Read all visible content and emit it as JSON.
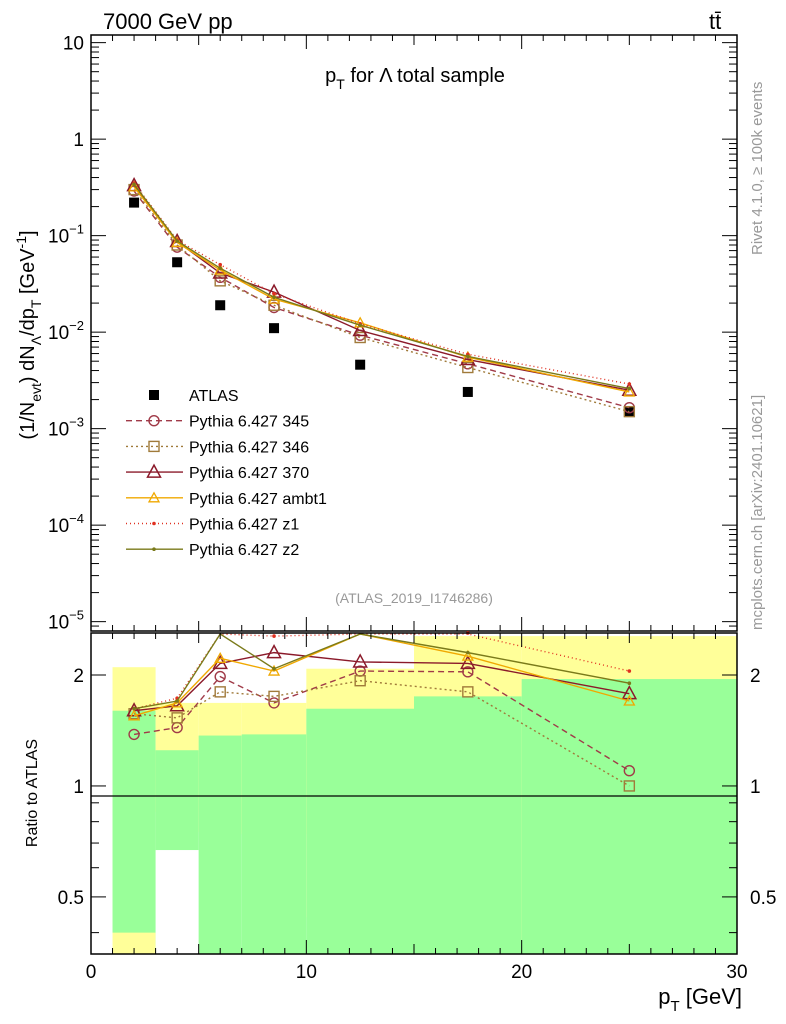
{
  "header": {
    "energy_label": "7000 GeV pp",
    "process_label": "tt̄"
  },
  "side_labels": {
    "rivet": "Rivet 4.1.0, ≥ 100k events",
    "mcplots": "mcplots.cern.ch [arXiv:2401.10621]"
  },
  "colors": {
    "band_green": "#99ff99",
    "band_yellow": "#ffff99",
    "axis": "#000000"
  },
  "chart_data": [
    {
      "type": "scatter",
      "panel": "main",
      "title": "p_T for Λ total sample",
      "ylabel": "(1/N_evt) dN_Λ/dp_T [GeV⁻¹]",
      "yscale": "log",
      "xlim": [
        0,
        30
      ],
      "ylim": [
        8e-06,
        12
      ],
      "ytick_labels": [
        {
          "value": 10,
          "base": "10",
          "exp": ""
        },
        {
          "value": 1,
          "base": "1",
          "exp": ""
        },
        {
          "value": 0.1,
          "base": "10",
          "exp": "−1"
        },
        {
          "value": 0.01,
          "base": "10",
          "exp": "−2"
        },
        {
          "value": 0.001,
          "base": "10",
          "exp": "−3"
        },
        {
          "value": 0.0001,
          "base": "10",
          "exp": "−4"
        },
        {
          "value": 1e-05,
          "base": "10",
          "exp": "−5"
        }
      ],
      "x": [
        2,
        4,
        6,
        8.5,
        12.5,
        17.5,
        25
      ],
      "reference_label": "(ATLAS_2019_I1746286)",
      "series": [
        {
          "name": "ATLAS",
          "color": "#000000",
          "dash": "",
          "marker": "square",
          "values": [
            0.22,
            0.053,
            0.019,
            0.011,
            0.0046,
            0.0024,
            0.0015
          ]
        },
        {
          "name": "Pythia 6.427 345",
          "color": "#a03a48",
          "dash": "6,4",
          "marker": "circle",
          "values": [
            0.29,
            0.076,
            0.037,
            0.018,
            0.0093,
            0.0047,
            0.00165
          ]
        },
        {
          "name": "Pythia 6.427 346",
          "color": "#a07a3a",
          "dash": "2,3",
          "marker": "square-open",
          "values": [
            0.3,
            0.08,
            0.034,
            0.019,
            0.0088,
            0.0043,
            0.0015
          ]
        },
        {
          "name": "Pythia 6.427 370",
          "color": "#8b1a2a",
          "dash": "",
          "marker": "triangle",
          "values": [
            0.33,
            0.087,
            0.041,
            0.026,
            0.0104,
            0.0052,
            0.0025
          ]
        },
        {
          "name": "Pythia 6.427 ambt1",
          "color": "#f0a800",
          "dash": "",
          "marker": "triangle-small",
          "values": [
            0.32,
            0.085,
            0.044,
            0.022,
            0.0125,
            0.0055,
            0.0024
          ]
        },
        {
          "name": "Pythia 6.427 z1",
          "color": "#e03020",
          "dash": "1,3",
          "marker": "dot",
          "values": [
            0.35,
            0.09,
            0.05,
            0.025,
            0.0122,
            0.0059,
            0.0029
          ]
        },
        {
          "name": "Pythia 6.427 z2",
          "color": "#7a7a1a",
          "dash": "",
          "marker": "dot",
          "values": [
            0.34,
            0.088,
            0.046,
            0.023,
            0.0118,
            0.0056,
            0.0026
          ]
        }
      ]
    },
    {
      "type": "scatter",
      "panel": "ratio",
      "ylabel": "Ratio to ATLAS",
      "xlabel": "p_T [GeV]",
      "yscale": "log",
      "xlim": [
        0,
        30
      ],
      "ylim": [
        0.35,
        2.6
      ],
      "yticks": [
        0.5,
        1,
        2
      ],
      "ytick_labels": [
        "0.5",
        "1",
        "2"
      ],
      "xticks": [
        0,
        10,
        20,
        30
      ],
      "xtick_labels": [
        "0",
        "10",
        "20",
        "30"
      ],
      "x": [
        2,
        4,
        6,
        8.5,
        12.5,
        17.5,
        25
      ],
      "bands": {
        "edges": [
          1,
          3,
          5,
          7,
          10,
          15,
          20,
          30
        ],
        "green_low": [
          0.4,
          0.35,
          0.35,
          0.35,
          0.35,
          0.35,
          0.35
        ],
        "green_high": [
          1.6,
          1.25,
          1.37,
          1.38,
          1.62,
          1.75,
          1.95
        ],
        "yellow_low": [
          0.35,
          0.85,
          0.75,
          0.74,
          0.44,
          0.35,
          0.35
        ],
        "yellow_high": [
          2.1,
          1.68,
          1.68,
          1.68,
          2.08,
          2.55,
          2.55
        ],
        "white_low": [
          0.35,
          0.35,
          0.35,
          0.35,
          0.35,
          0.35,
          0.35
        ],
        "white_high": [
          0.35,
          0.67,
          0.35,
          0.35,
          0.35,
          0.35,
          0.35
        ]
      },
      "series": [
        {
          "name": "Pythia 6.427 345",
          "values": [
            1.38,
            1.44,
            1.98,
            1.68,
            2.05,
            2.04,
            1.1
          ]
        },
        {
          "name": "Pythia 6.427 346",
          "values": [
            1.57,
            1.53,
            1.8,
            1.75,
            1.93,
            1.8,
            1.0
          ]
        },
        {
          "name": "Pythia 6.427 370",
          "values": [
            1.6,
            1.65,
            2.15,
            2.3,
            2.17,
            2.15,
            1.78
          ]
        },
        {
          "name": "Pythia 6.427 ambt1",
          "values": [
            1.55,
            1.68,
            2.22,
            2.05,
            2.75,
            2.25,
            1.7
          ]
        },
        {
          "name": "Pythia 6.427 z1",
          "values": [
            1.62,
            1.73,
            2.7,
            2.55,
            2.7,
            2.6,
            2.05
          ]
        },
        {
          "name": "Pythia 6.427 z2",
          "values": [
            1.62,
            1.7,
            2.65,
            2.08,
            2.75,
            2.3,
            1.9
          ]
        }
      ]
    }
  ]
}
